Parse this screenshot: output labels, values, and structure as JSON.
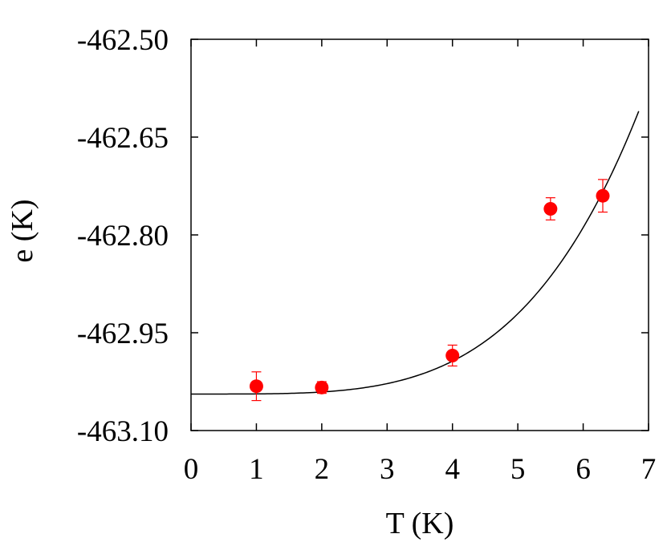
{
  "chart_data": {
    "type": "scatter",
    "title": "",
    "xlabel": "T (K)",
    "ylabel": "e (K)",
    "xlim": [
      0,
      7
    ],
    "ylim": [
      -463.1,
      -462.5
    ],
    "x_ticks": [
      "0",
      "1",
      "2",
      "3",
      "4",
      "5",
      "6",
      "7"
    ],
    "y_ticks": [
      "-462.50",
      "-462.65",
      "-462.80",
      "-462.95",
      "-463.10"
    ],
    "grid": false,
    "legend": "none",
    "series": [
      {
        "kind": "points-with-error-bars",
        "color": "#ff0000",
        "x": [
          1.0,
          2.0,
          4.0,
          5.5,
          6.3
        ],
        "y": [
          -463.032,
          -463.034,
          -462.985,
          -462.76,
          -462.74
        ],
        "yerr": [
          0.022,
          0.009,
          0.016,
          0.017,
          0.025
        ]
      },
      {
        "kind": "fit-curve",
        "color": "#000000",
        "equation": "y = -463.044 + 0.000197 * x^4",
        "x_range": [
          0,
          6.85
        ]
      }
    ]
  }
}
